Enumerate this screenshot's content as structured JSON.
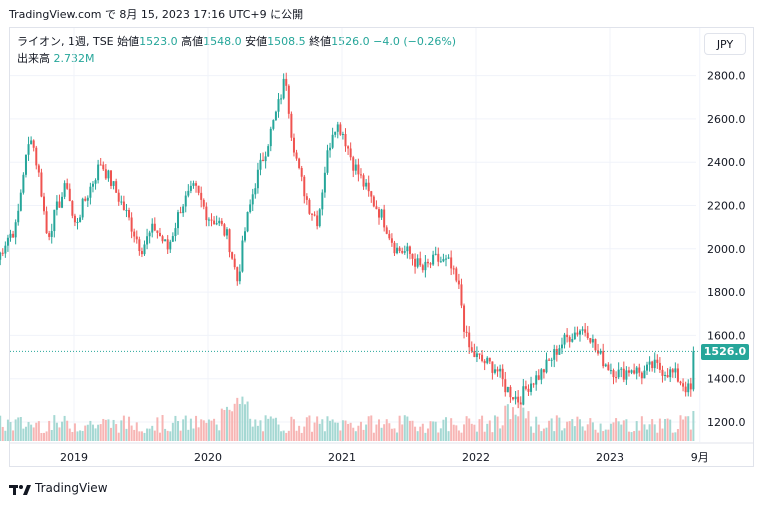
{
  "header": {
    "text": "TradingView.com で 8月 15, 2023 17:16 UTC+9 に公開"
  },
  "legend": {
    "symbol": "ライオン, 1週, TSE",
    "open_label": "始値",
    "open": "1523.0",
    "high_label": "高値",
    "high": "1548.0",
    "low_label": "安値",
    "low": "1508.5",
    "close_label": "終値",
    "close": "1526.0",
    "change": "−4.0 (−0.26%)",
    "volume_label": "出来高",
    "volume": "2.732M"
  },
  "currency": "JPY",
  "last_price": "1526.0",
  "footer": {
    "brand": "TradingView"
  },
  "colors": {
    "up": "#26a69a",
    "down": "#ef5350",
    "up_vol": "#a5d8d3",
    "down_vol": "#f7b5b4",
    "text": "#131722"
  },
  "chart_data": {
    "type": "candlestick",
    "interval": "1 week",
    "y_ticks": [
      "1200.0",
      "1400.0",
      "1600.0",
      "1800.0",
      "2000.0",
      "2200.0",
      "2400.0",
      "2600.0",
      "2800.0"
    ],
    "x_ticks": [
      "2019",
      "2020",
      "2021",
      "2022",
      "2023",
      "9月"
    ],
    "ylim": [
      1150,
      2880
    ],
    "xlim": [
      2018.42,
      2023.98
    ],
    "last_close": 1526.0,
    "path": [
      [
        2018.43,
        1950
      ],
      [
        2018.5,
        2050
      ],
      [
        2018.57,
        2100
      ],
      [
        2018.62,
        2350
      ],
      [
        2018.68,
        2530
      ],
      [
        2018.75,
        2300
      ],
      [
        2018.8,
        2050
      ],
      [
        2018.88,
        2200
      ],
      [
        2018.95,
        2300
      ],
      [
        2019.0,
        2100
      ],
      [
        2019.1,
        2250
      ],
      [
        2019.2,
        2400
      ],
      [
        2019.3,
        2280
      ],
      [
        2019.4,
        2150
      ],
      [
        2019.5,
        2000
      ],
      [
        2019.6,
        2100
      ],
      [
        2019.7,
        2000
      ],
      [
        2019.8,
        2200
      ],
      [
        2019.9,
        2280
      ],
      [
        2020.0,
        2150
      ],
      [
        2020.08,
        2120
      ],
      [
        2020.15,
        2050
      ],
      [
        2020.22,
        1850
      ],
      [
        2020.28,
        2100
      ],
      [
        2020.35,
        2300
      ],
      [
        2020.45,
        2500
      ],
      [
        2020.52,
        2650
      ],
      [
        2020.58,
        2800
      ],
      [
        2020.62,
        2550
      ],
      [
        2020.68,
        2350
      ],
      [
        2020.75,
        2200
      ],
      [
        2020.82,
        2130
      ],
      [
        2020.88,
        2400
      ],
      [
        2020.94,
        2580
      ],
      [
        2021.0,
        2550
      ],
      [
        2021.08,
        2400
      ],
      [
        2021.16,
        2300
      ],
      [
        2021.2,
        2250
      ],
      [
        2021.3,
        2150
      ],
      [
        2021.4,
        2000
      ],
      [
        2021.5,
        1980
      ],
      [
        2021.6,
        1900
      ],
      [
        2021.7,
        1950
      ],
      [
        2021.8,
        1930
      ],
      [
        2021.88,
        1800
      ],
      [
        2021.92,
        1600
      ],
      [
        2021.96,
        1520
      ],
      [
        2022.05,
        1480
      ],
      [
        2022.15,
        1450
      ],
      [
        2022.22,
        1360
      ],
      [
        2022.32,
        1300
      ],
      [
        2022.4,
        1380
      ],
      [
        2022.48,
        1420
      ],
      [
        2022.55,
        1480
      ],
      [
        2022.62,
        1550
      ],
      [
        2022.7,
        1600
      ],
      [
        2022.78,
        1630
      ],
      [
        2022.84,
        1620
      ],
      [
        2022.9,
        1520
      ],
      [
        2023.0,
        1450
      ],
      [
        2023.08,
        1420
      ],
      [
        2023.16,
        1450
      ],
      [
        2023.24,
        1420
      ],
      [
        2023.32,
        1460
      ],
      [
        2023.4,
        1440
      ],
      [
        2023.48,
        1420
      ],
      [
        2023.54,
        1380
      ],
      [
        2023.58,
        1350
      ],
      [
        2023.61,
        1340
      ],
      [
        2023.625,
        1526
      ]
    ]
  }
}
